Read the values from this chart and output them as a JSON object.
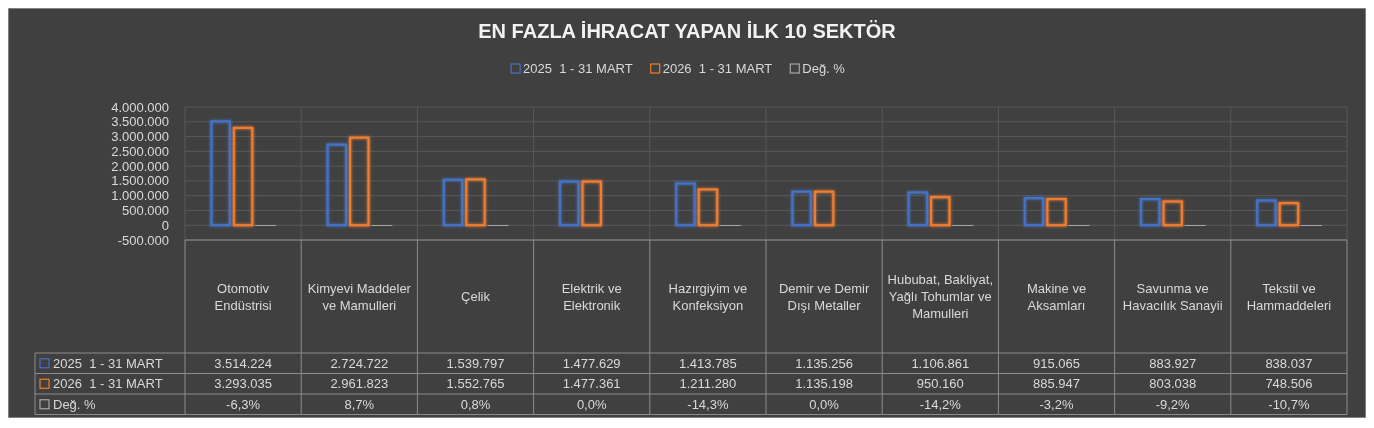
{
  "chart_data": {
    "type": "bar",
    "title": "EN FAZLA İHRACAT YAPAN İLK 10 SEKTÖR",
    "categories": [
      "Otomotiv Endüstrisi",
      "Kimyevi Maddeler ve Mamulleri",
      "Çelik",
      "Elektrik ve Elektronik",
      "Hazırgiyim ve Konfeksiyon",
      "Demir ve Demir Dışı Metaller",
      "Hububat, Bakliyat, Yağlı Tohumlar ve Mamulleri",
      "Makine ve Aksamları",
      "Savunma ve Havacılık Sanayii",
      "Tekstil ve Hammaddeleri"
    ],
    "series": [
      {
        "name": "2025  1 - 31 MART",
        "color": "#4472c4",
        "values": [
          3514224,
          2724722,
          1539797,
          1477629,
          1413785,
          1135256,
          1106861,
          915065,
          883927,
          838037
        ],
        "value_labels": [
          "3.514.224",
          "2.724.722",
          "1.539.797",
          "1.477.629",
          "1.413.785",
          "1.135.256",
          "1.106.861",
          "915.065",
          "883.927",
          "838.037"
        ]
      },
      {
        "name": "2026  1 - 31 MART",
        "color": "#ed7d31",
        "values": [
          3293035,
          2961823,
          1552765,
          1477361,
          1211280,
          1135198,
          950160,
          885947,
          803038,
          748506
        ],
        "value_labels": [
          "3.293.035",
          "2.961.823",
          "1.552.765",
          "1.477.361",
          "1.211.280",
          "1.135.198",
          "950.160",
          "885.947",
          "803.038",
          "748.506"
        ]
      },
      {
        "name": "Değ. %",
        "color": "#a5a5a5",
        "values": [
          -6.3,
          8.7,
          0.8,
          0.0,
          -14.3,
          0.0,
          -14.2,
          -3.2,
          -9.2,
          -10.7
        ],
        "value_labels": [
          "-6,3%",
          "8,7%",
          "0,8%",
          "0,0%",
          "-14,3%",
          "0,0%",
          "-14,2%",
          "-3,2%",
          "-9,2%",
          "-10,7%"
        ]
      }
    ],
    "ylim": [
      -500000,
      4000000
    ],
    "yticks": [
      {
        "value": -500000,
        "label": "-500.000"
      },
      0,
      {
        "value": 500000,
        "label": "500.000"
      },
      {
        "value": 1000000,
        "label": "1.000.000"
      },
      {
        "value": 1500000,
        "label": "1.500.000"
      },
      {
        "value": 2000000,
        "label": "2.000.000"
      },
      {
        "value": 2500000,
        "label": "2.500.000"
      },
      {
        "value": 3000000,
        "label": "3.000.000"
      },
      {
        "value": 3500000,
        "label": "3.500.000"
      },
      {
        "value": 4000000,
        "label": "4.000.000"
      }
    ],
    "grid": true,
    "legend": "top"
  }
}
